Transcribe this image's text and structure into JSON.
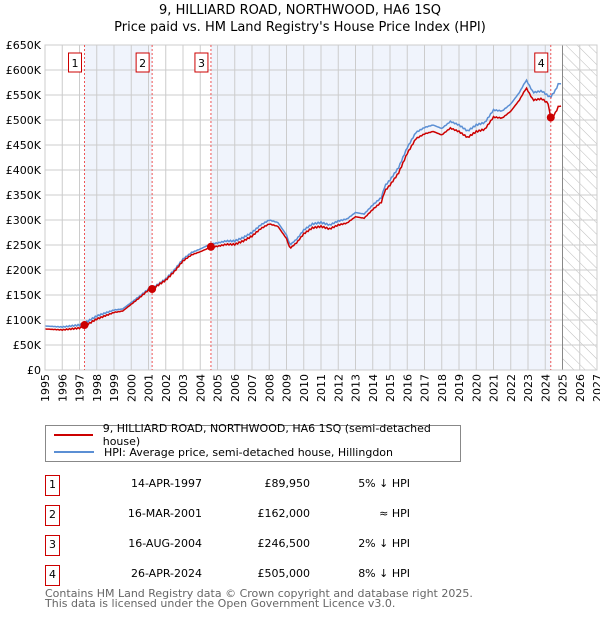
{
  "chart_data": {
    "type": "line",
    "title": "9, HILLIARD ROAD, NORTHWOOD, HA6 1SQ",
    "subtitle": "Price paid vs. HM Land Registry's House Price Index (HPI)",
    "xlim": [
      1995,
      2027
    ],
    "ylim": [
      0,
      650000
    ],
    "y_ticks": [
      "£0",
      "£50K",
      "£100K",
      "£150K",
      "£200K",
      "£250K",
      "£300K",
      "£350K",
      "£400K",
      "£450K",
      "£500K",
      "£550K",
      "£600K",
      "£650K"
    ],
    "x_ticks": [
      "1995",
      "1996",
      "1997",
      "1998",
      "1999",
      "2000",
      "2001",
      "2002",
      "2003",
      "2004",
      "2005",
      "2006",
      "2007",
      "2008",
      "2009",
      "2010",
      "2011",
      "2012",
      "2013",
      "2014",
      "2015",
      "2016",
      "2017",
      "2018",
      "2019",
      "2020",
      "2021",
      "2022",
      "2023",
      "2024",
      "2025",
      "2026",
      "2027"
    ],
    "grid": true,
    "forecast_from": 2025.0,
    "hpi_series": {
      "name": "HPI: Average price, semi-detached house, Hillingdon",
      "color": "#5b8fd4",
      "points": [
        [
          1995,
          88
        ],
        [
          1995.5,
          87
        ],
        [
          1996,
          86
        ],
        [
          1996.5,
          88
        ],
        [
          1997,
          90
        ],
        [
          1997.3,
          94
        ],
        [
          1998,
          108
        ],
        [
          1999,
          120
        ],
        [
          1999.5,
          122
        ],
        [
          2000,
          135
        ],
        [
          2000.5,
          148
        ],
        [
          2001,
          162
        ],
        [
          2001.2,
          163
        ],
        [
          2002,
          182
        ],
        [
          2002.5,
          200
        ],
        [
          2003,
          222
        ],
        [
          2003.5,
          235
        ],
        [
          2004,
          242
        ],
        [
          2004.6,
          252
        ],
        [
          2005,
          254
        ],
        [
          2005.5,
          258
        ],
        [
          2006,
          258
        ],
        [
          2006.5,
          265
        ],
        [
          2007,
          275
        ],
        [
          2007.5,
          290
        ],
        [
          2008,
          300
        ],
        [
          2008.5,
          295
        ],
        [
          2009,
          270
        ],
        [
          2009.2,
          250
        ],
        [
          2009.6,
          262
        ],
        [
          2010,
          280
        ],
        [
          2010.5,
          292
        ],
        [
          2011,
          295
        ],
        [
          2011.5,
          290
        ],
        [
          2012,
          298
        ],
        [
          2012.5,
          302
        ],
        [
          2013,
          315
        ],
        [
          2013.5,
          312
        ],
        [
          2014,
          330
        ],
        [
          2014.5,
          345
        ],
        [
          2014.7,
          368
        ],
        [
          2015,
          380
        ],
        [
          2015.5,
          405
        ],
        [
          2016,
          445
        ],
        [
          2016.5,
          475
        ],
        [
          2017,
          485
        ],
        [
          2017.5,
          490
        ],
        [
          2018,
          483
        ],
        [
          2018.5,
          497
        ],
        [
          2019,
          490
        ],
        [
          2019.5,
          478
        ],
        [
          2020,
          490
        ],
        [
          2020.5,
          495
        ],
        [
          2021,
          520
        ],
        [
          2021.5,
          518
        ],
        [
          2022,
          532
        ],
        [
          2022.5,
          555
        ],
        [
          2022.9,
          580
        ],
        [
          2023.3,
          555
        ],
        [
          2023.8,
          558
        ],
        [
          2024.3,
          545
        ],
        [
          2024.6,
          560
        ],
        [
          2024.8,
          575
        ],
        [
          2024.95,
          570
        ]
      ]
    },
    "property_series": {
      "name": "9, HILLIARD ROAD, NORTHWOOD, HA6 1SQ (semi-detached house)",
      "color": "#cc0000",
      "ratio": [
        [
          1995,
          0.95
        ],
        [
          1997.3,
          0.95
        ],
        [
          2001.2,
          1.0
        ],
        [
          2004.6,
          0.98
        ],
        [
          2023.8,
          0.975
        ],
        [
          2024.2,
          0.975
        ],
        [
          2024.3,
          0.92
        ],
        [
          2025,
          0.925
        ]
      ]
    },
    "sales": [
      {
        "n": "1",
        "t": 1997.29,
        "date": "14-APR-1997",
        "price": 89950,
        "price_label": "£89,950",
        "hpi": "5% ↓ HPI"
      },
      {
        "n": "2",
        "t": 2001.21,
        "date": "16-MAR-2001",
        "price": 162000,
        "price_label": "£162,000",
        "hpi": "≈ HPI"
      },
      {
        "n": "3",
        "t": 2004.62,
        "date": "16-AUG-2004",
        "price": 246500,
        "price_label": "£246,500",
        "hpi": "2% ↓ HPI"
      },
      {
        "n": "4",
        "t": 2024.32,
        "date": "26-APR-2024",
        "price": 505000,
        "price_label": "£505,000",
        "hpi": "8% ↓ HPI"
      }
    ]
  },
  "legend": {
    "property": "9, HILLIARD ROAD, NORTHWOOD, HA6 1SQ (semi-detached house)",
    "hpi": "HPI: Average price, semi-detached house, Hillingdon"
  },
  "footer": {
    "line1": "Contains HM Land Registry data © Crown copyright and database right 2025.",
    "line2": "This data is licensed under the Open Government Licence v3.0."
  }
}
